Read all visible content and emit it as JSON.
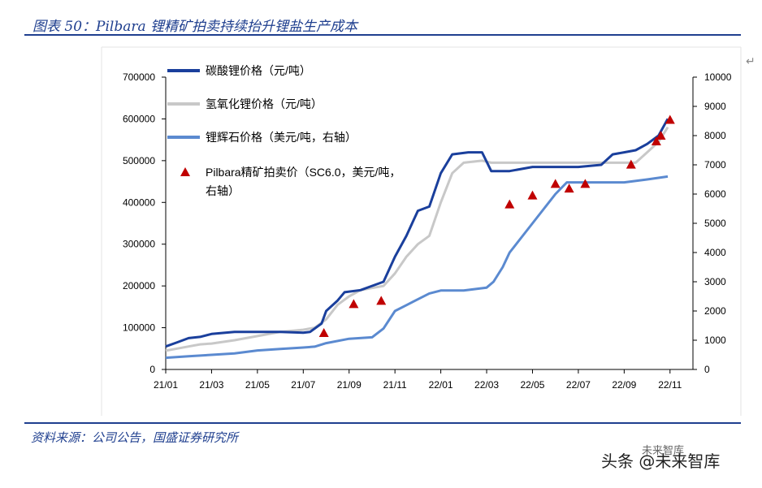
{
  "header": {
    "title": "图表 50：Pilbara 锂精矿拍卖持续抬升锂盐生产成本"
  },
  "footer": {
    "source": "资料来源：公司公告，国盛证券研究所",
    "watermark": "头条 @未来智库",
    "watermark_logo": "未来智库"
  },
  "colors": {
    "carbonate": "#1a3f9c",
    "hydroxide": "#c8c8c8",
    "spodumene": "#5b8ad0",
    "auction": "#c00000",
    "accent": "#1f3f8f"
  },
  "chart_data": {
    "type": "line",
    "x_categories": [
      "21/01",
      "21/03",
      "21/05",
      "21/07",
      "21/09",
      "21/11",
      "22/01",
      "22/03",
      "22/05",
      "22/07",
      "22/09",
      "22/11"
    ],
    "ylim_left": [
      0,
      700000
    ],
    "ylim_right": [
      0,
      10000
    ],
    "yticks_left": [
      "0",
      "100000",
      "200000",
      "300000",
      "400000",
      "500000",
      "600000",
      "700000"
    ],
    "yticks_right": [
      "0",
      "1000",
      "2000",
      "3000",
      "4000",
      "5000",
      "6000",
      "7000",
      "8000",
      "9000",
      "10000"
    ],
    "grid": false,
    "legend_position": "top-left",
    "series": [
      {
        "name": "碳酸锂价格（元/吨）",
        "axis": "left",
        "color": "#1a3f9c",
        "points": [
          [
            0,
            55000
          ],
          [
            0.5,
            65000
          ],
          [
            1,
            75000
          ],
          [
            1.5,
            78000
          ],
          [
            2,
            85000
          ],
          [
            3,
            90000
          ],
          [
            4,
            90000
          ],
          [
            5,
            90000
          ],
          [
            6,
            88000
          ],
          [
            6.3,
            90000
          ],
          [
            6.8,
            110000
          ],
          [
            7,
            140000
          ],
          [
            7.5,
            165000
          ],
          [
            7.8,
            185000
          ],
          [
            8.5,
            190000
          ],
          [
            9,
            200000
          ],
          [
            9.5,
            210000
          ],
          [
            10,
            270000
          ],
          [
            10.5,
            320000
          ],
          [
            11,
            380000
          ],
          [
            11.5,
            390000
          ],
          [
            12,
            470000
          ],
          [
            12.5,
            515000
          ],
          [
            13.2,
            520000
          ],
          [
            13.8,
            520000
          ],
          [
            14.2,
            475000
          ],
          [
            15,
            475000
          ],
          [
            16,
            485000
          ],
          [
            17,
            485000
          ],
          [
            18,
            485000
          ],
          [
            19,
            490000
          ],
          [
            19.5,
            515000
          ],
          [
            20,
            520000
          ],
          [
            20.5,
            525000
          ],
          [
            21,
            540000
          ],
          [
            21.5,
            560000
          ],
          [
            21.9,
            600000
          ]
        ]
      },
      {
        "name": "氢氧化锂价格（元/吨）",
        "axis": "left",
        "color": "#c8c8c8",
        "points": [
          [
            0,
            45000
          ],
          [
            0.5,
            50000
          ],
          [
            1,
            55000
          ],
          [
            1.5,
            60000
          ],
          [
            2,
            62000
          ],
          [
            3,
            70000
          ],
          [
            4,
            80000
          ],
          [
            5,
            90000
          ],
          [
            6,
            95000
          ],
          [
            6.5,
            100000
          ],
          [
            7,
            120000
          ],
          [
            7.5,
            155000
          ],
          [
            8,
            175000
          ],
          [
            8.5,
            190000
          ],
          [
            9,
            195000
          ],
          [
            9.5,
            200000
          ],
          [
            10,
            230000
          ],
          [
            10.5,
            270000
          ],
          [
            11,
            300000
          ],
          [
            11.5,
            320000
          ],
          [
            12,
            400000
          ],
          [
            12.5,
            470000
          ],
          [
            13,
            495000
          ],
          [
            13.8,
            500000
          ],
          [
            14.2,
            495000
          ],
          [
            15,
            495000
          ],
          [
            16,
            495000
          ],
          [
            17,
            495000
          ],
          [
            18,
            495000
          ],
          [
            19,
            495000
          ],
          [
            20,
            495000
          ],
          [
            20.5,
            495000
          ],
          [
            21,
            520000
          ],
          [
            21.5,
            545000
          ],
          [
            21.9,
            580000
          ]
        ]
      },
      {
        "name": "锂辉石价格（美元/吨，右轴）",
        "axis": "right",
        "color": "#5b8ad0",
        "points": [
          [
            0,
            400
          ],
          [
            1,
            450
          ],
          [
            2,
            500
          ],
          [
            3,
            550
          ],
          [
            4,
            650
          ],
          [
            5,
            700
          ],
          [
            6,
            750
          ],
          [
            6.5,
            780
          ],
          [
            7,
            900
          ],
          [
            8,
            1050
          ],
          [
            9,
            1100
          ],
          [
            9.5,
            1400
          ],
          [
            10,
            2000
          ],
          [
            10.5,
            2200
          ],
          [
            11,
            2400
          ],
          [
            11.5,
            2600
          ],
          [
            12,
            2700
          ],
          [
            13,
            2700
          ],
          [
            14,
            2800
          ],
          [
            14.3,
            3000
          ],
          [
            14.7,
            3500
          ],
          [
            15,
            4000
          ],
          [
            15.5,
            4500
          ],
          [
            16,
            5000
          ],
          [
            16.5,
            5500
          ],
          [
            17,
            6000
          ],
          [
            17.5,
            6400
          ],
          [
            18,
            6400
          ],
          [
            19,
            6400
          ],
          [
            20,
            6400
          ],
          [
            21,
            6500
          ],
          [
            21.9,
            6600
          ]
        ]
      }
    ],
    "auction": {
      "name": "Pilbara精矿拍卖价（SC6.0，美元/吨，右轴）",
      "axis": "right",
      "color": "#c00000",
      "points": [
        [
          6.9,
          1250
        ],
        [
          8.2,
          2240
        ],
        [
          9.4,
          2350
        ],
        [
          15,
          5650
        ],
        [
          16,
          5955
        ],
        [
          17,
          6350
        ],
        [
          17.6,
          6190
        ],
        [
          18.3,
          6350
        ],
        [
          20.3,
          7010
        ],
        [
          21.4,
          7805
        ],
        [
          21.6,
          8000
        ],
        [
          22,
          8540
        ]
      ]
    }
  }
}
